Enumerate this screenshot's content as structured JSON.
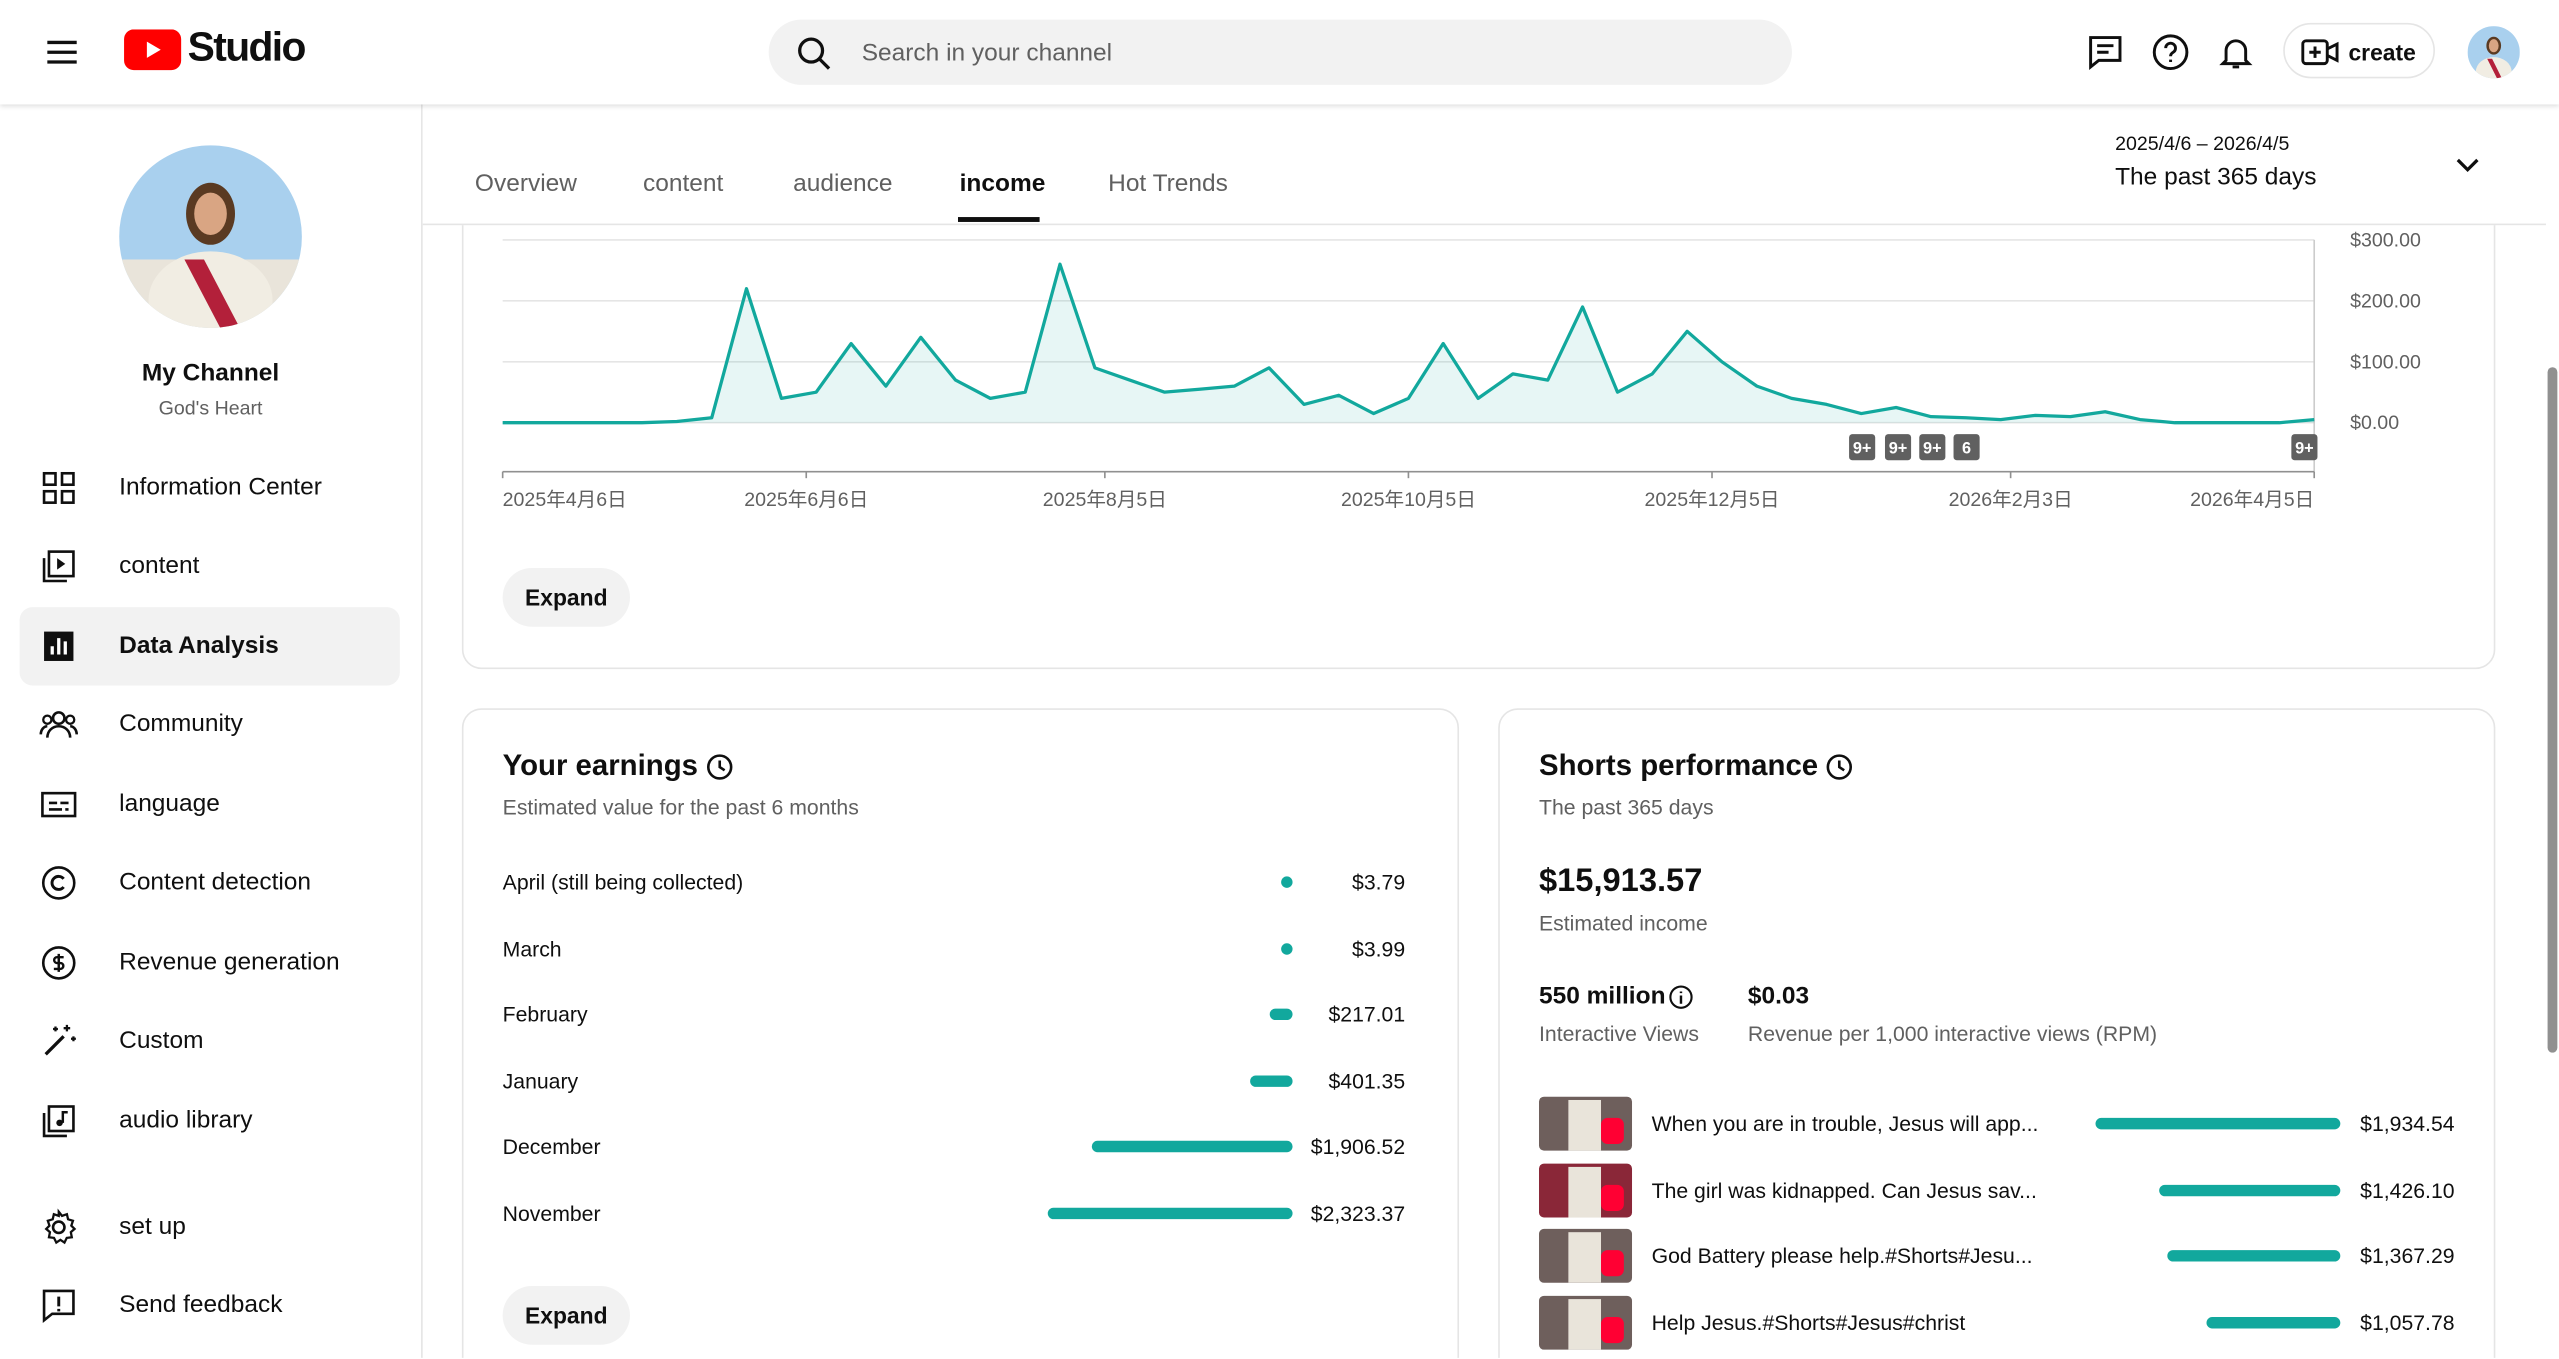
{
  "header": {
    "logo": "Studio",
    "search_placeholder": "Search in your channel",
    "create": "create"
  },
  "sidebar": {
    "channel_name": "My Channel",
    "channel_handle": "God's Heart",
    "nav": [
      "Information Center",
      "content",
      "Data Analysis",
      "Community",
      "language",
      "Content detection",
      "Revenue generation",
      "Custom",
      "audio library"
    ],
    "bottom_nav": [
      "set up",
      "Send feedback"
    ]
  },
  "tabs": [
    "Overview",
    "content",
    "audience",
    "income",
    "Hot Trends"
  ],
  "date_range": {
    "dates": "2025/4/6 – 2026/4/5",
    "label": "The past 365 days"
  },
  "chart_data": {
    "type": "line",
    "color": "#12a89d",
    "x": [
      "2025-04-06",
      "2025-04-13",
      "2025-04-20",
      "2025-04-27",
      "2025-05-04",
      "2025-05-11",
      "2025-05-18",
      "2025-05-25",
      "2025-06-01",
      "2025-06-08",
      "2025-06-15",
      "2025-06-22",
      "2025-06-29",
      "2025-07-06",
      "2025-07-13",
      "2025-07-20",
      "2025-07-27",
      "2025-08-03",
      "2025-08-10",
      "2025-08-17",
      "2025-08-24",
      "2025-08-31",
      "2025-09-07",
      "2025-09-14",
      "2025-09-21",
      "2025-09-28",
      "2025-10-05",
      "2025-10-12",
      "2025-10-19",
      "2025-10-26",
      "2025-11-02",
      "2025-11-09",
      "2025-11-16",
      "2025-11-23",
      "2025-11-30",
      "2025-12-07",
      "2025-12-14",
      "2025-12-21",
      "2025-12-28",
      "2026-01-04",
      "2026-01-11",
      "2026-01-18",
      "2026-01-25",
      "2026-02-01",
      "2026-02-08",
      "2026-02-15",
      "2026-02-22",
      "2026-03-01",
      "2026-03-08",
      "2026-03-15",
      "2026-03-22",
      "2026-03-29",
      "2026-04-05"
    ],
    "values": [
      0,
      0,
      0,
      0,
      0,
      2,
      8,
      220,
      40,
      50,
      130,
      60,
      140,
      70,
      40,
      50,
      260,
      90,
      70,
      50,
      55,
      60,
      90,
      30,
      45,
      15,
      40,
      130,
      40,
      80,
      70,
      190,
      50,
      80,
      150,
      100,
      60,
      40,
      30,
      15,
      25,
      10,
      8,
      5,
      12,
      10,
      18,
      5,
      0,
      0,
      0,
      0,
      5
    ],
    "xlim": [
      "2025-04-06",
      "2026-04-05"
    ],
    "xticks": [
      {
        "value": "2025-04-06",
        "label": "2025年4月6日"
      },
      {
        "value": "2025-06-06",
        "label": "2025年6月6日"
      },
      {
        "value": "2025-08-05",
        "label": "2025年8月5日"
      },
      {
        "value": "2025-10-05",
        "label": "2025年10月5日"
      },
      {
        "value": "2025-12-05",
        "label": "2025年12月5日"
      },
      {
        "value": "2026-02-03",
        "label": "2026年2月3日"
      },
      {
        "value": "2026-04-05",
        "label": "2026年4月5日"
      }
    ],
    "ylim": [
      0,
      300
    ],
    "yticks": [
      {
        "value": 0,
        "label": "$0.00"
      },
      {
        "value": 100,
        "label": "$100.00"
      },
      {
        "value": 200,
        "label": "$200.00"
      },
      {
        "value": 300,
        "label": "$300.00"
      }
    ],
    "grid": true,
    "annotations": [
      "9+",
      "9+",
      "9+",
      "6",
      "9+"
    ]
  },
  "chart_expand": "Expand",
  "earnings": {
    "title": "Your earnings",
    "subtitle": "Estimated value for the past 6 months",
    "rows": [
      {
        "label": "April (still being collected)",
        "value": 3.79,
        "value_label": "$3.79"
      },
      {
        "label": "March",
        "value": 3.99,
        "value_label": "$3.99"
      },
      {
        "label": "February",
        "value": 217.01,
        "value_label": "$217.01"
      },
      {
        "label": "January",
        "value": 401.35,
        "value_label": "$401.35"
      },
      {
        "label": "December",
        "value": 1906.52,
        "value_label": "$1,906.52"
      },
      {
        "label": "November",
        "value": 2323.37,
        "value_label": "$2,323.37"
      }
    ],
    "expand": "Expand"
  },
  "shorts": {
    "title": "Shorts performance",
    "subtitle": "The past 365 days",
    "income": "$15,913.57",
    "income_label": "Estimated income",
    "views": "550 million",
    "views_label": "Interactive Views",
    "rpm": "$0.03",
    "rpm_label": "Revenue per 1,000 interactive views (RPM)",
    "videos": [
      {
        "title": "When you are in trouble, Jesus will app...",
        "value": 1934.54,
        "value_label": "$1,934.54"
      },
      {
        "title": "The girl was kidnapped. Can Jesus sav...",
        "value": 1426.1,
        "value_label": "$1,426.10"
      },
      {
        "title": "God Battery please help.#Shorts#Jesu...",
        "value": 1367.29,
        "value_label": "$1,367.29"
      },
      {
        "title": "Help Jesus.#Shorts#Jesus#christ",
        "value": 1057.78,
        "value_label": "$1,057.78"
      }
    ]
  }
}
